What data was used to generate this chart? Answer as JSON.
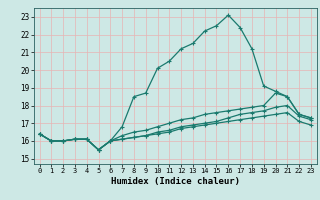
{
  "xlabel": "Humidex (Indice chaleur)",
  "bg_color": "#cde8e5",
  "grid_color": "#e8b4b4",
  "line_color": "#1a7a6e",
  "xlim": [
    -0.5,
    23.5
  ],
  "ylim": [
    14.7,
    23.5
  ],
  "yticks": [
    15,
    16,
    17,
    18,
    19,
    20,
    21,
    22,
    23
  ],
  "xticks": [
    0,
    1,
    2,
    3,
    4,
    5,
    6,
    7,
    8,
    9,
    10,
    11,
    12,
    13,
    14,
    15,
    16,
    17,
    18,
    19,
    20,
    21,
    22,
    23
  ],
  "line1_x": [
    0,
    1,
    2,
    3,
    4,
    5,
    6,
    7,
    8,
    9,
    10,
    11,
    12,
    13,
    14,
    15,
    16,
    17,
    18,
    19,
    20,
    21,
    22,
    23
  ],
  "line1_y": [
    16.4,
    16.0,
    16.0,
    16.1,
    16.1,
    15.5,
    16.0,
    16.8,
    18.5,
    18.7,
    20.1,
    20.5,
    21.2,
    21.5,
    22.2,
    22.5,
    23.1,
    22.4,
    21.2,
    19.1,
    18.8,
    18.5,
    17.5,
    17.3
  ],
  "line2_x": [
    0,
    1,
    2,
    3,
    4,
    5,
    6,
    7,
    8,
    9,
    10,
    11,
    12,
    13,
    14,
    15,
    16,
    17,
    18,
    19,
    20,
    21,
    22,
    23
  ],
  "line2_y": [
    16.4,
    16.0,
    16.0,
    16.1,
    16.1,
    15.5,
    16.0,
    16.3,
    16.5,
    16.6,
    16.8,
    17.0,
    17.2,
    17.3,
    17.5,
    17.6,
    17.7,
    17.8,
    17.9,
    18.0,
    18.7,
    18.5,
    17.5,
    17.3
  ],
  "line3_x": [
    0,
    1,
    2,
    3,
    4,
    5,
    6,
    7,
    8,
    9,
    10,
    11,
    12,
    13,
    14,
    15,
    16,
    17,
    18,
    19,
    20,
    21,
    22,
    23
  ],
  "line3_y": [
    16.4,
    16.0,
    16.0,
    16.1,
    16.1,
    15.5,
    16.0,
    16.1,
    16.2,
    16.3,
    16.5,
    16.6,
    16.8,
    16.9,
    17.0,
    17.1,
    17.3,
    17.5,
    17.6,
    17.7,
    17.9,
    18.0,
    17.4,
    17.2
  ],
  "line4_x": [
    0,
    1,
    2,
    3,
    4,
    5,
    6,
    7,
    8,
    9,
    10,
    11,
    12,
    13,
    14,
    15,
    16,
    17,
    18,
    19,
    20,
    21,
    22,
    23
  ],
  "line4_y": [
    16.4,
    16.0,
    16.0,
    16.1,
    16.1,
    15.5,
    16.0,
    16.1,
    16.2,
    16.3,
    16.4,
    16.5,
    16.7,
    16.8,
    16.9,
    17.0,
    17.1,
    17.2,
    17.3,
    17.4,
    17.5,
    17.6,
    17.1,
    16.9
  ]
}
